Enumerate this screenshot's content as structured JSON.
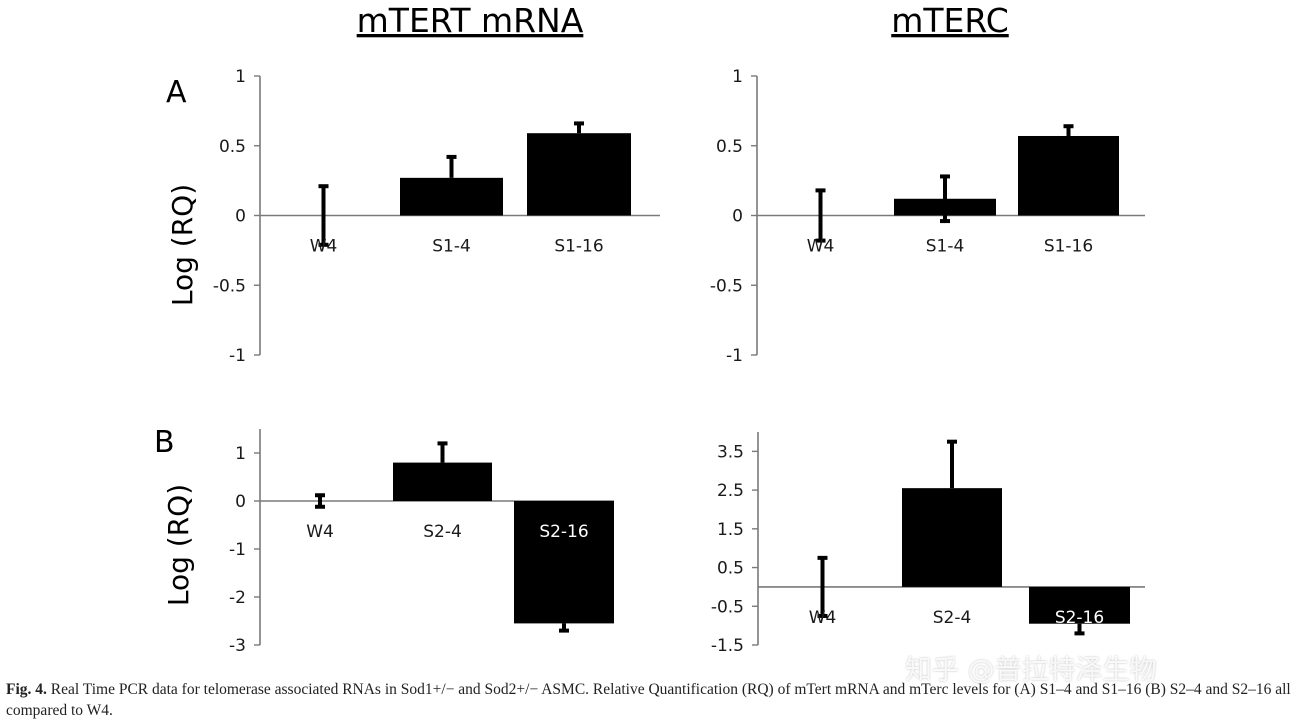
{
  "column_titles": [
    "mTERT mRNA",
    "mTERC"
  ],
  "panel_letters": [
    "A",
    "B"
  ],
  "ylabel": "Log (RQ)",
  "caption": {
    "lead": "Fig. 4.",
    "text": "Real Time PCR data for telomerase associated RNAs in Sod1+/− and Sod2+/− ASMC. Relative Quantification (RQ) of mTert mRNA and mTerc levels for (A) S1–4 and S1–16 (B) S2–4 and S2–16 all compared to W4."
  },
  "watermark": "知乎 @普拉特泽生物",
  "colors": {
    "bar": "#000000",
    "axis": "#7a7a7a",
    "text": "#1a1a1a"
  },
  "chart_data": [
    {
      "type": "bar",
      "panel": "A",
      "title": "mTERT mRNA",
      "ylabel": "Log (RQ)",
      "ylim": [
        -1,
        1
      ],
      "yticks": [
        1,
        0.5,
        0,
        -0.5,
        -1
      ],
      "ytick_labels": [
        "1",
        "0.5",
        "0",
        "-0.5",
        "-1"
      ],
      "categories": [
        "W4",
        "S1-4",
        "S1-16"
      ],
      "values": [
        0,
        0.27,
        0.59
      ],
      "errors": [
        0.21,
        0.15,
        0.07
      ],
      "error_low": [
        0.21,
        0,
        0
      ]
    },
    {
      "type": "bar",
      "panel": "A",
      "title": "mTERC",
      "ylim": [
        -1,
        1
      ],
      "yticks": [
        1,
        0.5,
        0,
        -0.5,
        -1
      ],
      "ytick_labels": [
        "1",
        "0.5",
        "0",
        "-0.5",
        "-1"
      ],
      "categories": [
        "W4",
        "S1-4",
        "S1-16"
      ],
      "values": [
        0,
        0.12,
        0.57
      ],
      "errors": [
        0.18,
        0.16,
        0.07
      ],
      "error_low": [
        0.18,
        0.16,
        0
      ]
    },
    {
      "type": "bar",
      "panel": "B",
      "title": "mTERT mRNA",
      "ylabel": "Log (RQ)",
      "ylim": [
        -3,
        1.5
      ],
      "yticks": [
        1,
        0,
        -1,
        -2,
        -3
      ],
      "ytick_labels": [
        "1",
        "0",
        "-1",
        "-2",
        "-3"
      ],
      "categories": [
        "W4",
        "S2-4",
        "S2-16"
      ],
      "values": [
        0,
        0.8,
        -2.55
      ],
      "errors": [
        0.12,
        0.4,
        0.15
      ],
      "error_low": [
        0.12,
        0,
        0
      ]
    },
    {
      "type": "bar",
      "panel": "B",
      "title": "mTERC",
      "ylim": [
        -1.5,
        4
      ],
      "yticks": [
        3.5,
        2.5,
        1.5,
        0.5,
        -0.5,
        -1.5
      ],
      "ytick_labels": [
        "3.5",
        "2.5",
        "1.5",
        "0.5",
        "-0.5",
        "-1.5"
      ],
      "categories": [
        "W4",
        "S2-4",
        "S2-16"
      ],
      "values": [
        0,
        2.55,
        -0.95
      ],
      "errors": [
        0.75,
        1.2,
        0.25
      ],
      "error_low": [
        0.75,
        0,
        0
      ]
    }
  ]
}
